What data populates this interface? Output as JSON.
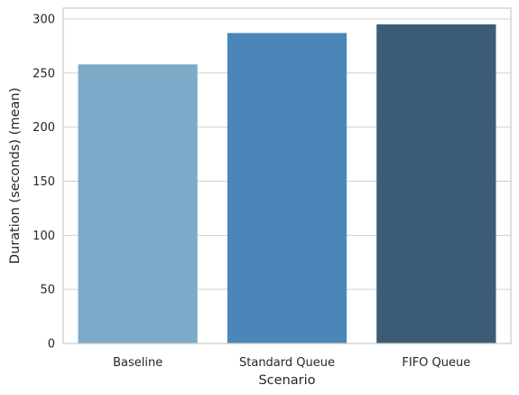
{
  "chart_data": {
    "type": "bar",
    "title": "",
    "xlabel": "Scenario",
    "ylabel": "Duration (seconds) (mean)",
    "categories": [
      "Baseline",
      "Standard Queue",
      "FIFO Queue"
    ],
    "values": [
      258,
      287,
      295
    ],
    "ylim": [
      0,
      310
    ],
    "yticks": [
      0,
      50,
      100,
      150,
      200,
      250,
      300
    ],
    "colors": [
      "#7eaac9",
      "#4a86b7",
      "#3c5c76"
    ],
    "grid": true,
    "legend": "none"
  }
}
